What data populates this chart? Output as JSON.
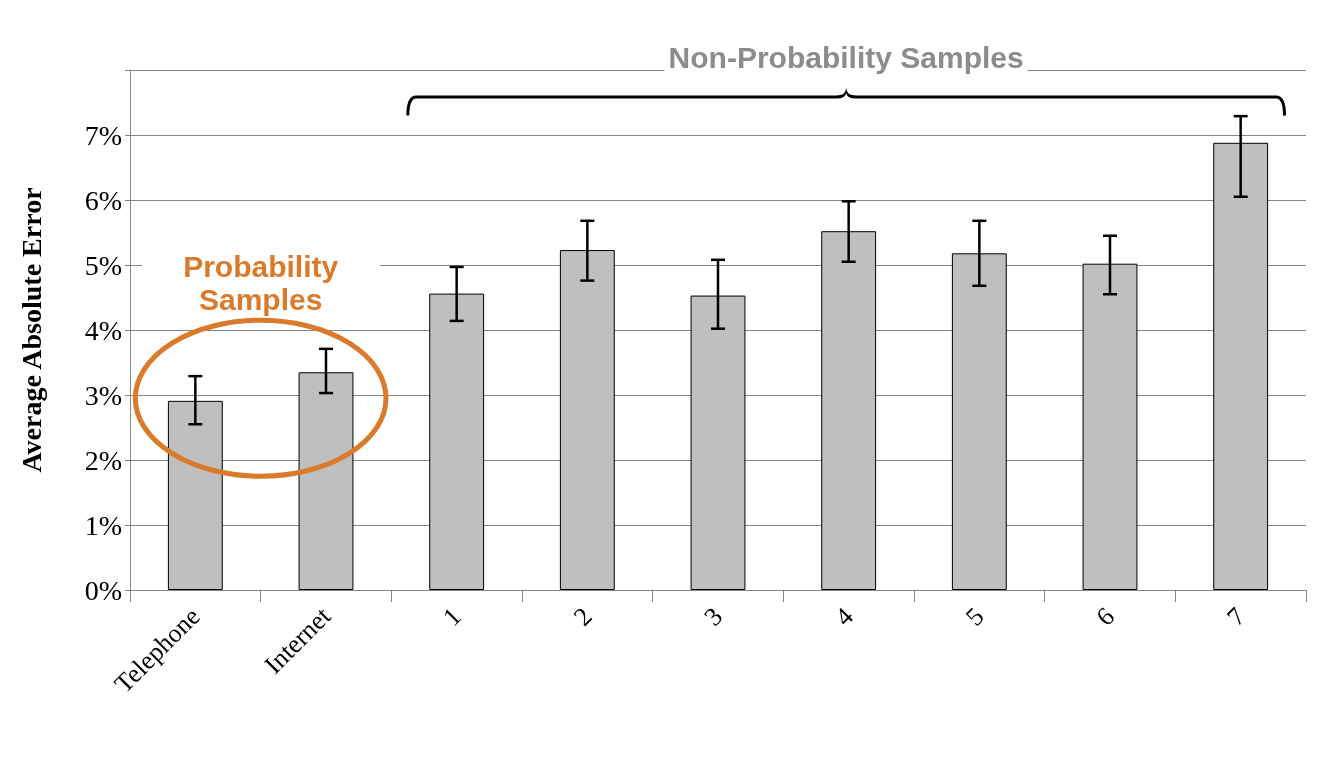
{
  "chart_data": {
    "type": "bar",
    "ylabel": "Average Absolute Error",
    "categories": [
      "Telephone",
      "Internet",
      "1",
      "2",
      "3",
      "4",
      "5",
      "6",
      "7"
    ],
    "values": [
      2.91,
      3.35,
      4.56,
      5.23,
      4.53,
      5.52,
      5.18,
      5.02,
      6.88
    ],
    "errors": [
      [
        2.55,
        3.29
      ],
      [
        3.03,
        3.71
      ],
      [
        4.14,
        4.97
      ],
      [
        4.76,
        5.68
      ],
      [
        4.02,
        5.08
      ],
      [
        5.05,
        5.98
      ],
      [
        4.68,
        5.68
      ],
      [
        4.55,
        5.45
      ],
      [
        6.05,
        7.29
      ]
    ],
    "color": "#bfbfbf",
    "ylim": [
      0,
      8
    ],
    "yticks": [
      {
        "value": 0,
        "label": "0%"
      },
      {
        "value": 1,
        "label": "1%"
      },
      {
        "value": 2,
        "label": "2%"
      },
      {
        "value": 3,
        "label": "3%"
      },
      {
        "value": 4,
        "label": "4%"
      },
      {
        "value": 5,
        "label": "5%"
      },
      {
        "value": 6,
        "label": "6%"
      },
      {
        "value": 7,
        "label": "7%"
      },
      {
        "value": 8,
        "label": null
      }
    ],
    "grid": "y",
    "annotations": [
      "Non-Probability Samples",
      "Probability Samples"
    ]
  }
}
